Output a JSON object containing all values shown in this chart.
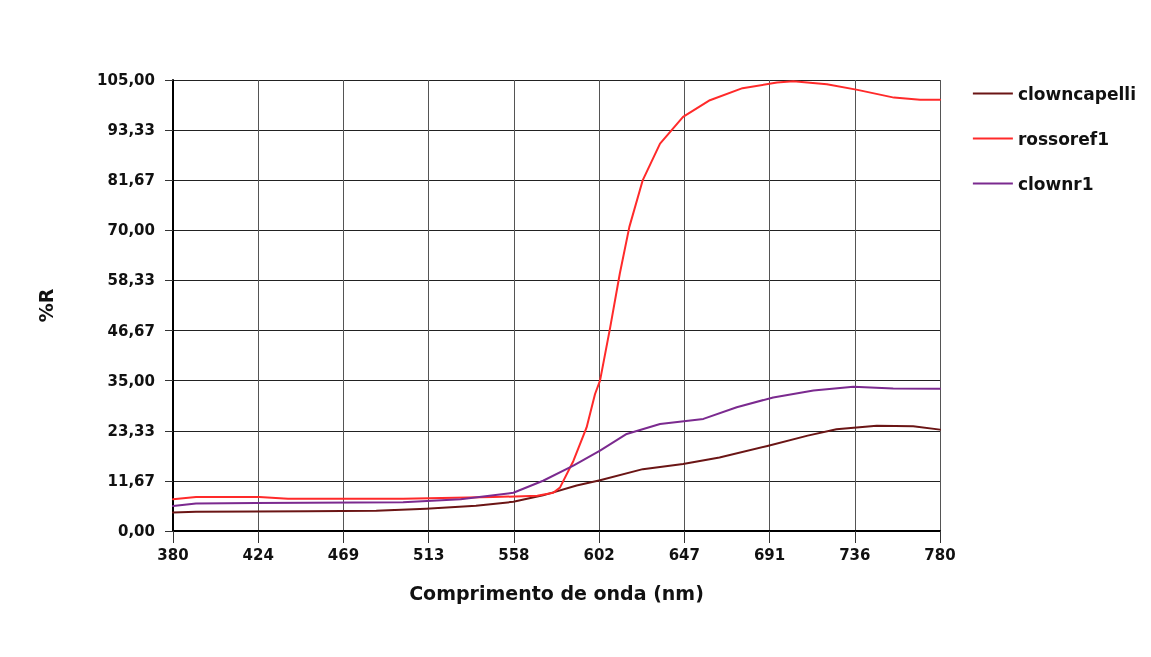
{
  "chart_data": {
    "type": "line",
    "xlabel": "Comprimento de onda (nm)",
    "ylabel": "%R",
    "xlim": [
      380,
      780
    ],
    "ylim": [
      0,
      105
    ],
    "xticks": [
      380,
      {
        "value": 424.44,
        "label": "424"
      },
      {
        "value": 468.89,
        "label": "469"
      },
      {
        "value": 513.33,
        "label": "513"
      },
      {
        "value": 557.78,
        "label": "558"
      },
      {
        "value": 602.22,
        "label": "602"
      },
      {
        "value": 646.67,
        "label": "647"
      },
      {
        "value": 691.11,
        "label": "691"
      },
      {
        "value": 735.56,
        "label": "736"
      },
      780
    ],
    "yticks": [
      {
        "value": 0,
        "label": "0,00"
      },
      {
        "value": 11.67,
        "label": "11,67"
      },
      {
        "value": 23.33,
        "label": "23,33"
      },
      {
        "value": 35,
        "label": "35,00"
      },
      {
        "value": 46.67,
        "label": "46,67"
      },
      {
        "value": 58.33,
        "label": "58,33"
      },
      {
        "value": 70,
        "label": "70,00"
      },
      {
        "value": 81.67,
        "label": "81,67"
      },
      {
        "value": 93.33,
        "label": "93,33"
      },
      {
        "value": 105,
        "label": "105,00"
      }
    ],
    "grid": true,
    "legend": "right",
    "marker": "none",
    "line_style": "solid",
    "series": [
      {
        "name": "clowncapelli",
        "color": "#6b1515",
        "x": [
          380,
          392,
          450,
          486,
          512,
          538,
          557.5,
          573,
          590.5,
          602.7,
          625,
          646,
          665,
          690,
          711,
          726,
          747,
          766,
          780
        ],
        "values": [
          4.3,
          4.5,
          4.6,
          4.7,
          5.2,
          5.9,
          6.8,
          8.3,
          10.6,
          11.8,
          14.4,
          15.6,
          17.1,
          19.8,
          22.2,
          23.7,
          24.5,
          24.4,
          23.6
        ]
      },
      {
        "name": "rossoref1",
        "color": "#ff2a2a",
        "x": [
          380,
          392,
          425,
          440,
          500,
          547,
          570,
          578.3,
          581.8,
          588.8,
          595.7,
          600.1,
          602.7,
          608,
          613,
          618,
          625,
          634,
          646,
          660,
          677,
          695,
          703.5,
          721,
          737,
          756,
          769.6,
          780
        ],
        "values": [
          7.4,
          7.9,
          7.9,
          7.5,
          7.5,
          7.9,
          8.2,
          8.9,
          10.1,
          16.3,
          24.1,
          31.9,
          35,
          47.4,
          59.9,
          70.8,
          81.7,
          90.2,
          96.4,
          100.3,
          103.1,
          104.4,
          104.7,
          104,
          102.7,
          100.9,
          100.4,
          100.4
        ]
      },
      {
        "name": "clownr1",
        "color": "#7b2a8f",
        "x": [
          380,
          392,
          450,
          500,
          530,
          557.5,
          573,
          588.8,
          602.7,
          616.6,
          634,
          656.6,
          674,
          693,
          714,
          734.8,
          755.6,
          780
        ],
        "values": [
          5.8,
          6.4,
          6.6,
          6.7,
          7.4,
          8.9,
          11.7,
          15.2,
          18.7,
          22.6,
          24.9,
          26.1,
          28.8,
          31.1,
          32.7,
          33.6,
          33.2,
          33.1
        ]
      }
    ]
  }
}
